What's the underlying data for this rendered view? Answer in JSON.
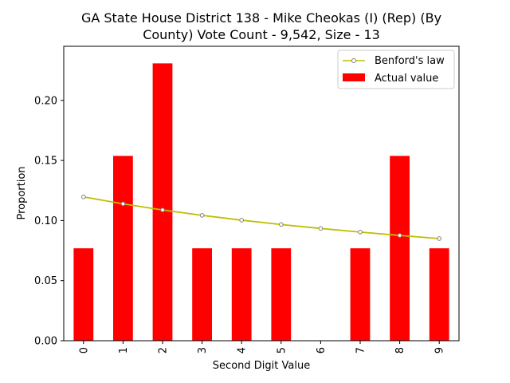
{
  "chart_data": {
    "type": "bar",
    "title_lines": [
      "GA State House District 138 - Mike Cheokas (I) (Rep) (By",
      "County) Vote Count - 9,542, Size - 13"
    ],
    "xlabel": "Second Digit Value",
    "ylabel": "Proportion",
    "categories": [
      "0",
      "1",
      "2",
      "3",
      "4",
      "5",
      "6",
      "7",
      "8",
      "9"
    ],
    "ylim": [
      0,
      0.245
    ],
    "yticks": [
      0.0,
      0.05,
      0.1,
      0.15,
      0.2
    ],
    "ytick_labels": [
      "0.00",
      "0.05",
      "0.10",
      "0.15",
      "0.20"
    ],
    "legend_position": "upper-right",
    "series": [
      {
        "name": "Actual value",
        "kind": "bar",
        "color": "#ff0000",
        "values": [
          0.0769,
          0.1538,
          0.2308,
          0.0769,
          0.0769,
          0.0769,
          0.0,
          0.0769,
          0.1538,
          0.0769
        ]
      },
      {
        "name": "Benford's law",
        "kind": "line",
        "color": "#bfbf00",
        "marker_color": "#808080",
        "values": [
          0.1197,
          0.1139,
          0.1088,
          0.1043,
          0.1003,
          0.0967,
          0.0934,
          0.0904,
          0.0876,
          0.085
        ]
      }
    ]
  }
}
